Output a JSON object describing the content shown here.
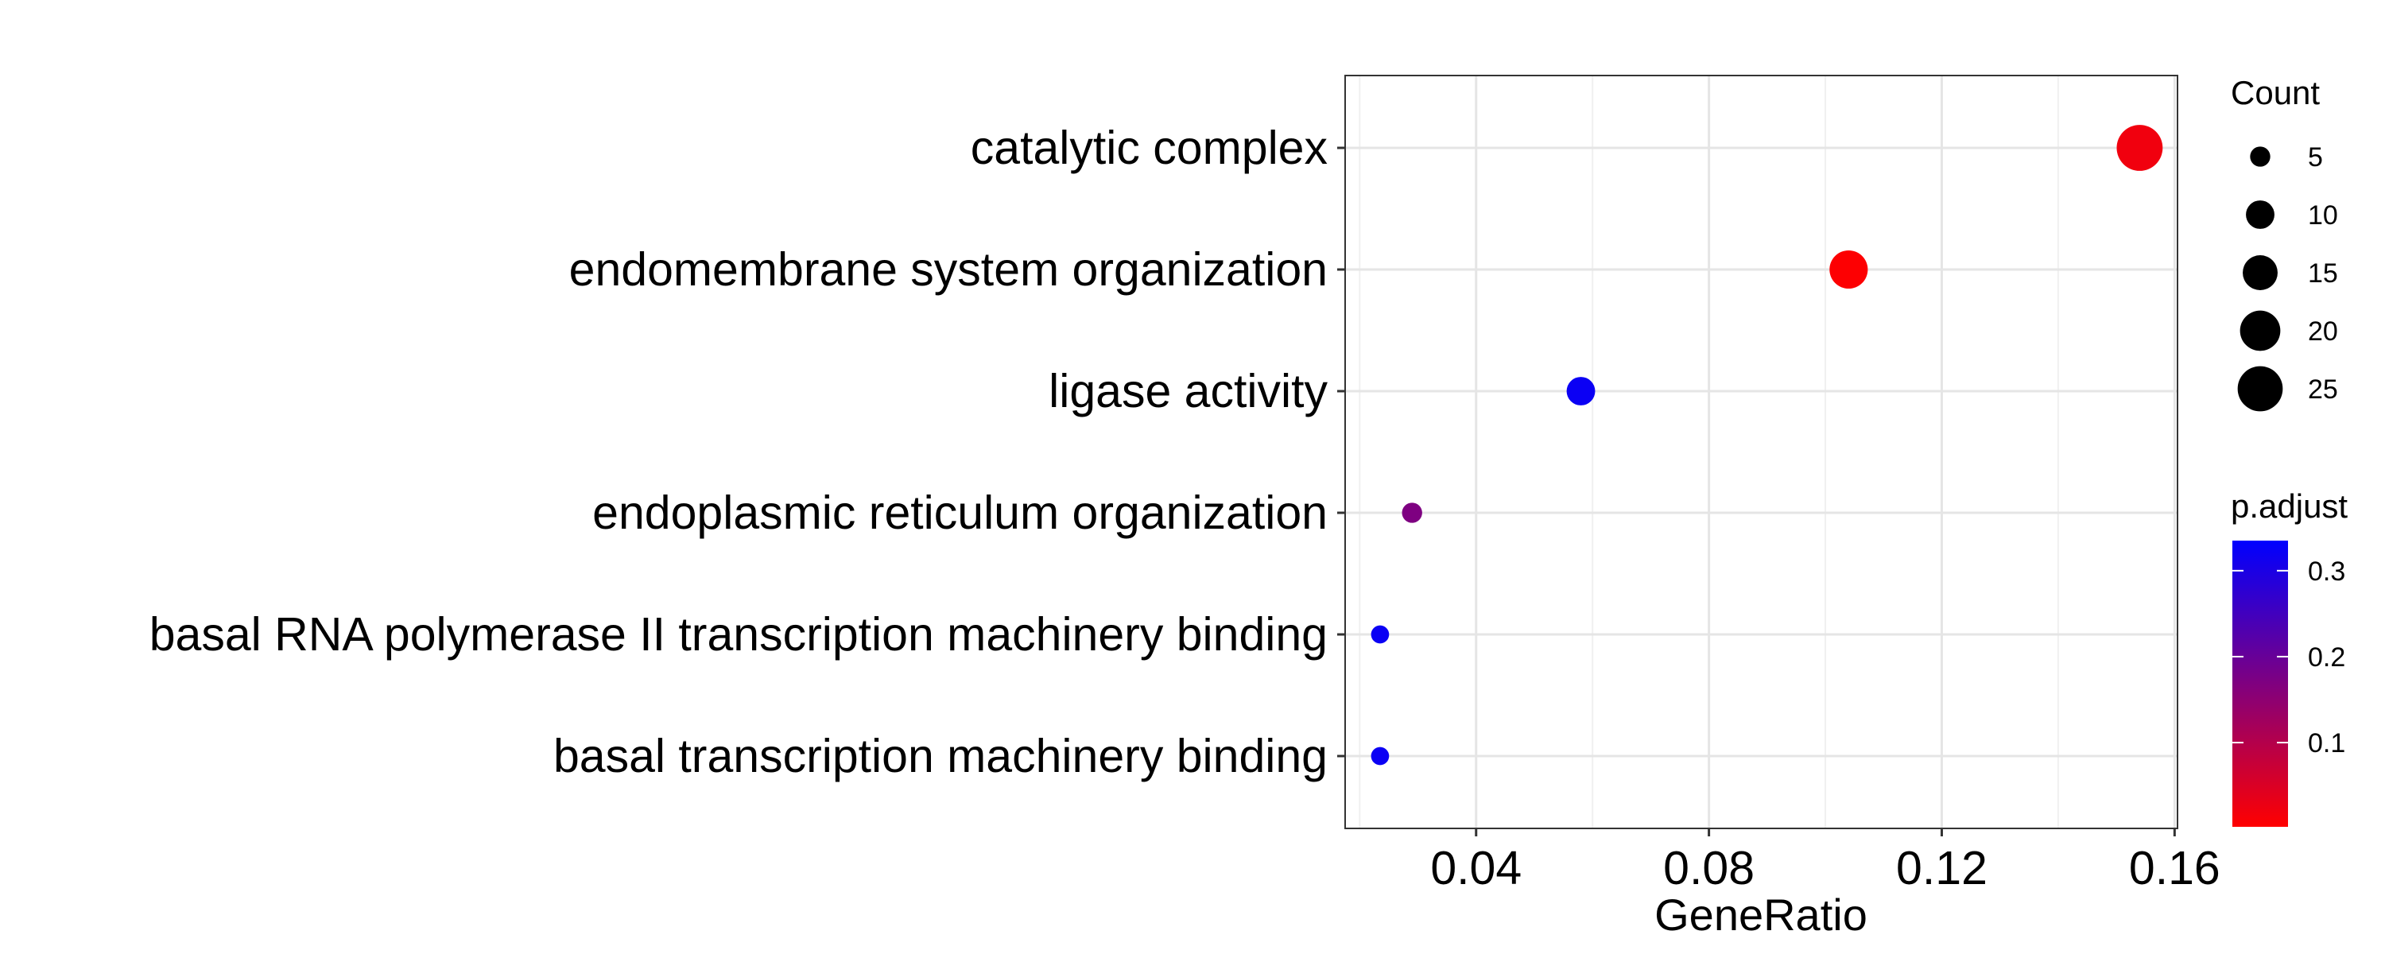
{
  "chart_data": {
    "type": "scatter",
    "xlabel": "GeneRatio",
    "ylabel": "",
    "xlim": [
      0.0175,
      0.1605
    ],
    "x_ticks": [
      {
        "value": 0.04,
        "label": "0.04"
      },
      {
        "value": 0.08,
        "label": "0.08"
      },
      {
        "value": 0.12,
        "label": "0.12"
      },
      {
        "value": 0.16,
        "label": "0.16"
      }
    ],
    "grid": true,
    "categories": [
      "catalytic complex",
      "endomembrane system organization",
      "ligase activity",
      "endoplasmic reticulum organization",
      "basal RNA polymerase II transcription machinery binding",
      "basal transcription machinery binding"
    ],
    "points": [
      {
        "term": "catalytic complex",
        "gene_ratio": 0.154,
        "count": 26,
        "p_adjust": 0.02
      },
      {
        "term": "endomembrane system organization",
        "gene_ratio": 0.104,
        "count": 18,
        "p_adjust": 0.005
      },
      {
        "term": "ligase activity",
        "gene_ratio": 0.058,
        "count": 10,
        "p_adjust": 0.32
      },
      {
        "term": "endoplasmic reticulum organization",
        "gene_ratio": 0.029,
        "count": 5,
        "p_adjust": 0.17
      },
      {
        "term": "basal RNA polymerase II transcription machinery binding",
        "gene_ratio": 0.0235,
        "count": 4,
        "p_adjust": 0.32
      },
      {
        "term": "basal transcription machinery binding",
        "gene_ratio": 0.0235,
        "count": 4,
        "p_adjust": 0.32
      }
    ],
    "legend_size": {
      "title": "Count",
      "entries": [
        {
          "value": 5,
          "label": "5"
        },
        {
          "value": 10,
          "label": "10"
        },
        {
          "value": 15,
          "label": "15"
        },
        {
          "value": 20,
          "label": "20"
        },
        {
          "value": 25,
          "label": "25"
        }
      ]
    },
    "legend_color": {
      "title": "p.adjust",
      "range": [
        0.002,
        0.335
      ],
      "low_color": "#ff0000",
      "high_color": "#0000ff",
      "ticks": [
        {
          "value": 0.1,
          "label": "0.1"
        },
        {
          "value": 0.2,
          "label": "0.2"
        },
        {
          "value": 0.3,
          "label": "0.3"
        }
      ]
    },
    "legend_placement": "right"
  }
}
